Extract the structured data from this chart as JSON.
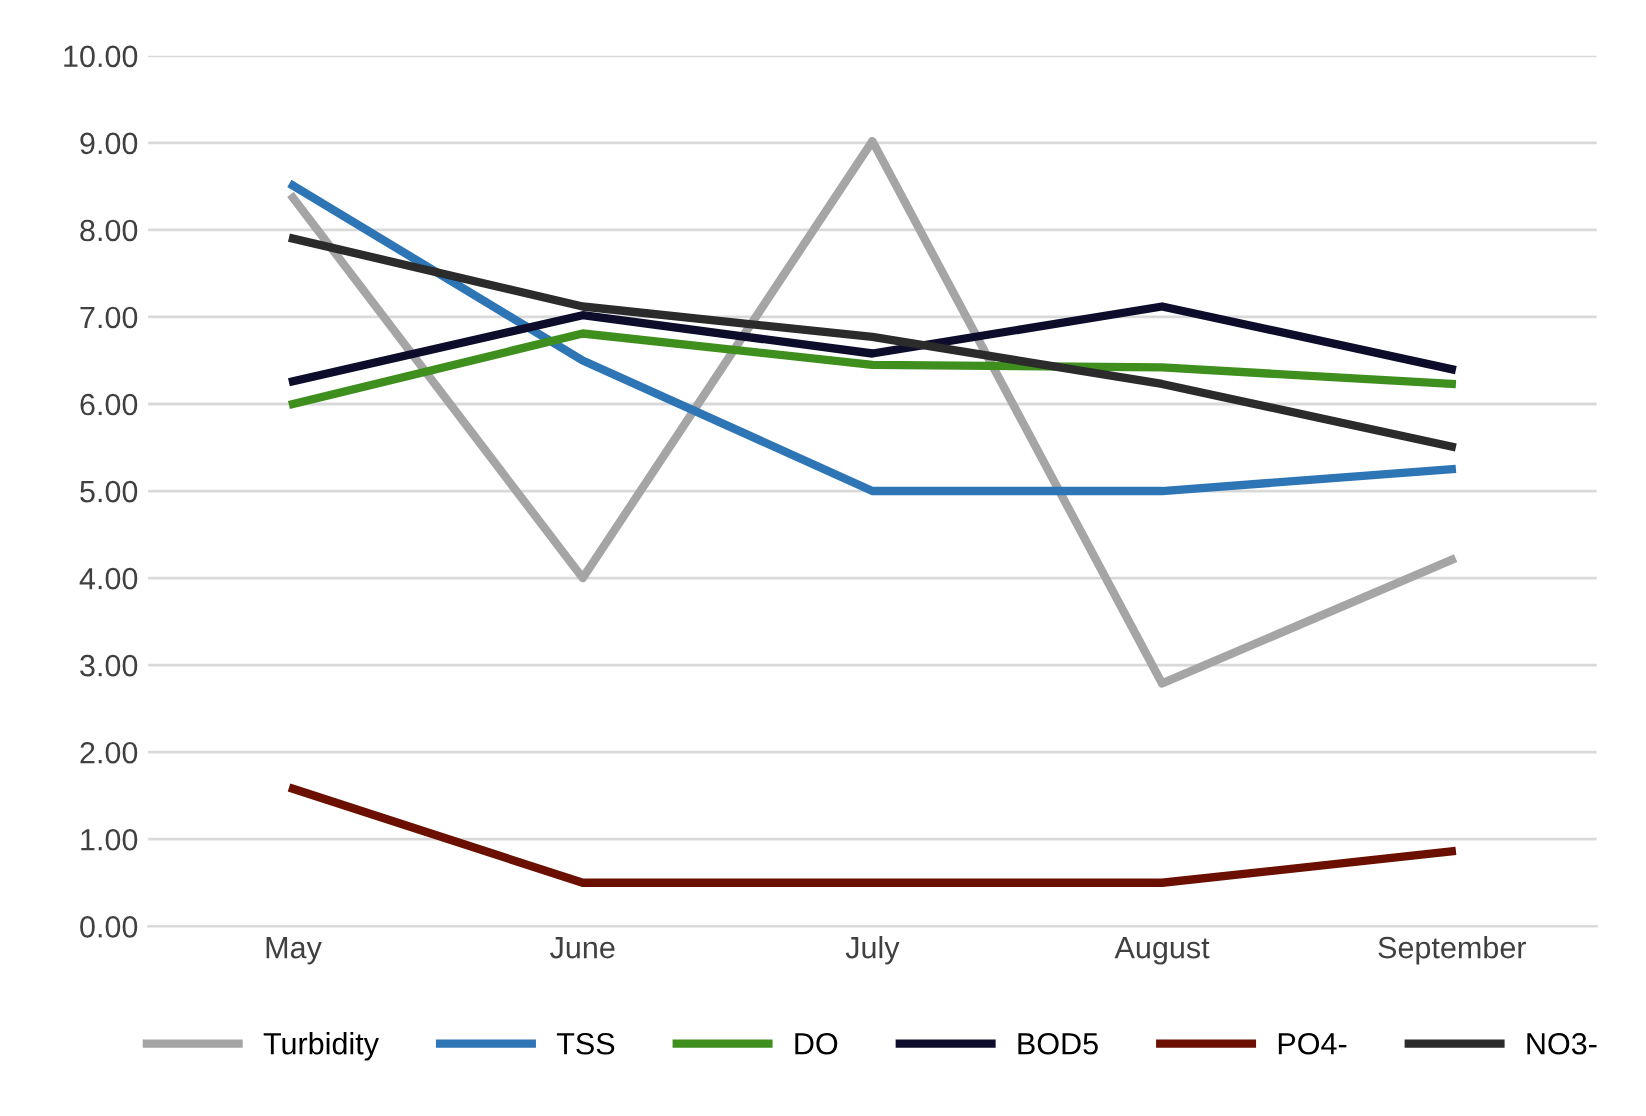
{
  "chart_data": {
    "type": "line",
    "categories": [
      "May",
      "June",
      "July",
      "August",
      "September"
    ],
    "series": [
      {
        "name": "Turbidity",
        "color": "#a5a5a5",
        "values": [
          8.37,
          4.0,
          9.02,
          2.79,
          4.21
        ]
      },
      {
        "name": "TSS",
        "color": "#2e75b6",
        "values": [
          8.51,
          6.5,
          5.0,
          5.0,
          5.25
        ]
      },
      {
        "name": "DO",
        "color": "#3f8f1f",
        "values": [
          6.0,
          6.81,
          6.45,
          6.42,
          6.23
        ]
      },
      {
        "name": "BOD5",
        "color": "#0d0d2b",
        "values": [
          6.26,
          7.02,
          6.58,
          7.12,
          6.4
        ]
      },
      {
        "name": "PO4-",
        "color": "#6b0f00",
        "values": [
          1.58,
          0.5,
          0.5,
          0.5,
          0.86
        ]
      },
      {
        "name": "NO3-",
        "color": "#2b2b2b",
        "values": [
          7.9,
          7.12,
          6.77,
          6.23,
          5.51
        ]
      }
    ],
    "ylim": [
      0,
      10
    ],
    "yticks": [
      {
        "value": 0,
        "label": "0.00"
      },
      {
        "value": 1,
        "label": "1.00"
      },
      {
        "value": 2,
        "label": "2.00"
      },
      {
        "value": 3,
        "label": "3.00"
      },
      {
        "value": 4,
        "label": "4.00"
      },
      {
        "value": 5,
        "label": "5.00"
      },
      {
        "value": 6,
        "label": "6.00"
      },
      {
        "value": 7,
        "label": "7.00"
      },
      {
        "value": 8,
        "label": "8.00"
      },
      {
        "value": 9,
        "label": "9.00"
      },
      {
        "value": 10,
        "label": "10.00"
      }
    ],
    "grid": "y",
    "legend": "bottom",
    "marker": "none",
    "line_style": "solid"
  }
}
